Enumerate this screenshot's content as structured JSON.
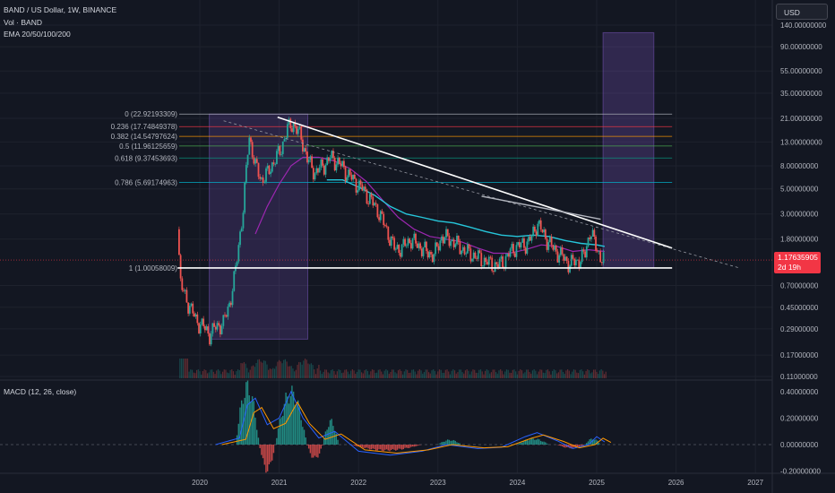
{
  "header": {
    "symbol_line": "BAND / US Dollar, 1W, BINANCE",
    "volume_line": "Vol · BAND",
    "ema_line": "EMA 20/50/100/200",
    "macd_line": "MACD (12, 26, close)"
  },
  "currency_button": "USD",
  "current_price": {
    "value": "1.17635905",
    "countdown": "2d 19h"
  },
  "colors": {
    "background": "#131722",
    "up": "#26a69a",
    "down": "#ef5350",
    "price_tag": "#f23645",
    "ema_teal": "#26c6da",
    "ema_purple": "#9c27b0",
    "trendline": "#ffffff",
    "zone": "#7e57c2"
  },
  "chart_data": [
    {
      "type": "line",
      "title": "",
      "scale": "log",
      "x_ticks": [
        "2020",
        "2021",
        "2022",
        "2023",
        "2024",
        "2025",
        "2026",
        "2027"
      ],
      "y_ticks": [
        "140.00000000",
        "90.00000000",
        "55.00000000",
        "35.00000000",
        "21.00000000",
        "13.00000000",
        "8.00000000",
        "5.00000000",
        "3.00000000",
        "1.80000000",
        "0.70000000",
        "0.45000000",
        "0.29000000",
        "0.17000000",
        "0.11000000"
      ],
      "fib_levels": [
        {
          "label": "0 (22.92193309)",
          "value": 22.92193309,
          "color": "#b2b5be"
        },
        {
          "label": "0.236 (17.74849378)",
          "value": 17.74849378,
          "color": "#f23645"
        },
        {
          "label": "0.382 (14.54797624)",
          "value": 14.54797624,
          "color": "#ff9800"
        },
        {
          "label": "0.5 (11.96125659)",
          "value": 11.96125659,
          "color": "#4caf50"
        },
        {
          "label": "0.618 (9.37453693)",
          "value": 9.37453693,
          "color": "#089981"
        },
        {
          "label": "0.786 (5.69174963)",
          "value": 5.69174963,
          "color": "#00bcd4"
        },
        {
          "label": "1 (1.00058009)",
          "value": 1.00058009,
          "color": "#787b86"
        }
      ],
      "price_path": [
        [
          2019.72,
          2.2
        ],
        [
          2019.76,
          0.7
        ],
        [
          2019.85,
          0.5
        ],
        [
          2019.95,
          0.35
        ],
        [
          2020.05,
          0.3
        ],
        [
          2020.12,
          0.26
        ],
        [
          2020.2,
          0.3
        ],
        [
          2020.3,
          0.33
        ],
        [
          2020.38,
          0.5
        ],
        [
          2020.45,
          0.95
        ],
        [
          2020.55,
          3.5
        ],
        [
          2020.62,
          15
        ],
        [
          2020.7,
          8
        ],
        [
          2020.78,
          6
        ],
        [
          2020.86,
          7
        ],
        [
          2020.94,
          9
        ],
        [
          2021.02,
          11
        ],
        [
          2021.1,
          17
        ],
        [
          2021.18,
          19
        ],
        [
          2021.28,
          14
        ],
        [
          2021.36,
          9
        ],
        [
          2021.45,
          7
        ],
        [
          2021.55,
          8
        ],
        [
          2021.65,
          9.5
        ],
        [
          2021.75,
          8.5
        ],
        [
          2021.85,
          7
        ],
        [
          2021.95,
          5.8
        ],
        [
          2022.05,
          5
        ],
        [
          2022.15,
          4
        ],
        [
          2022.25,
          3.2
        ],
        [
          2022.35,
          2.2
        ],
        [
          2022.45,
          1.5
        ],
        [
          2022.55,
          1.5
        ],
        [
          2022.65,
          1.8
        ],
        [
          2022.75,
          1.6
        ],
        [
          2022.85,
          1.4
        ],
        [
          2022.95,
          1.3
        ],
        [
          2023.05,
          1.9
        ],
        [
          2023.15,
          1.8
        ],
        [
          2023.25,
          1.6
        ],
        [
          2023.35,
          1.4
        ],
        [
          2023.45,
          1.3
        ],
        [
          2023.55,
          1.2
        ],
        [
          2023.65,
          1.1
        ],
        [
          2023.75,
          1.05
        ],
        [
          2023.85,
          1.2
        ],
        [
          2023.95,
          1.5
        ],
        [
          2024.05,
          1.6
        ],
        [
          2024.15,
          1.7
        ],
        [
          2024.25,
          2.5
        ],
        [
          2024.35,
          1.9
        ],
        [
          2024.45,
          1.5
        ],
        [
          2024.55,
          1.3
        ],
        [
          2024.65,
          1.1
        ],
        [
          2024.75,
          1.15
        ],
        [
          2024.85,
          1.3
        ],
        [
          2024.92,
          2.2
        ],
        [
          2024.98,
          1.6
        ],
        [
          2025.05,
          1.25
        ],
        [
          2025.1,
          1.176
        ]
      ],
      "ema_teal_path": [
        [
          2021.6,
          6
        ],
        [
          2021.8,
          6
        ],
        [
          2022.0,
          5.2
        ],
        [
          2022.2,
          4.4
        ],
        [
          2022.4,
          3.5
        ],
        [
          2022.6,
          3
        ],
        [
          2022.8,
          2.8
        ],
        [
          2023.0,
          2.6
        ],
        [
          2023.2,
          2.5
        ],
        [
          2023.4,
          2.3
        ],
        [
          2023.6,
          2.1
        ],
        [
          2023.8,
          1.95
        ],
        [
          2024.0,
          1.9
        ],
        [
          2024.2,
          1.95
        ],
        [
          2024.4,
          1.9
        ],
        [
          2024.6,
          1.75
        ],
        [
          2024.8,
          1.65
        ],
        [
          2025.0,
          1.6
        ],
        [
          2025.1,
          1.55
        ]
      ],
      "ema_purple_path": [
        [
          2020.7,
          2.0
        ],
        [
          2020.85,
          3.5
        ],
        [
          2021.0,
          5.5
        ],
        [
          2021.15,
          8
        ],
        [
          2021.3,
          9.5
        ],
        [
          2021.5,
          9.5
        ],
        [
          2021.7,
          8.8
        ],
        [
          2021.9,
          7.5
        ],
        [
          2022.1,
          5.8
        ],
        [
          2022.3,
          4
        ],
        [
          2022.5,
          2.8
        ],
        [
          2022.7,
          2.2
        ],
        [
          2022.9,
          1.9
        ],
        [
          2023.1,
          1.8
        ],
        [
          2023.3,
          1.7
        ],
        [
          2023.5,
          1.5
        ],
        [
          2023.7,
          1.35
        ],
        [
          2023.9,
          1.35
        ],
        [
          2024.1,
          1.45
        ],
        [
          2024.3,
          1.6
        ],
        [
          2024.5,
          1.55
        ],
        [
          2024.7,
          1.4
        ],
        [
          2024.9,
          1.45
        ],
        [
          2025.1,
          1.4
        ]
      ],
      "macd_ticks": [
        "0.40000000",
        "0.20000000",
        "0.00000000",
        "-0.20000000"
      ]
    }
  ]
}
